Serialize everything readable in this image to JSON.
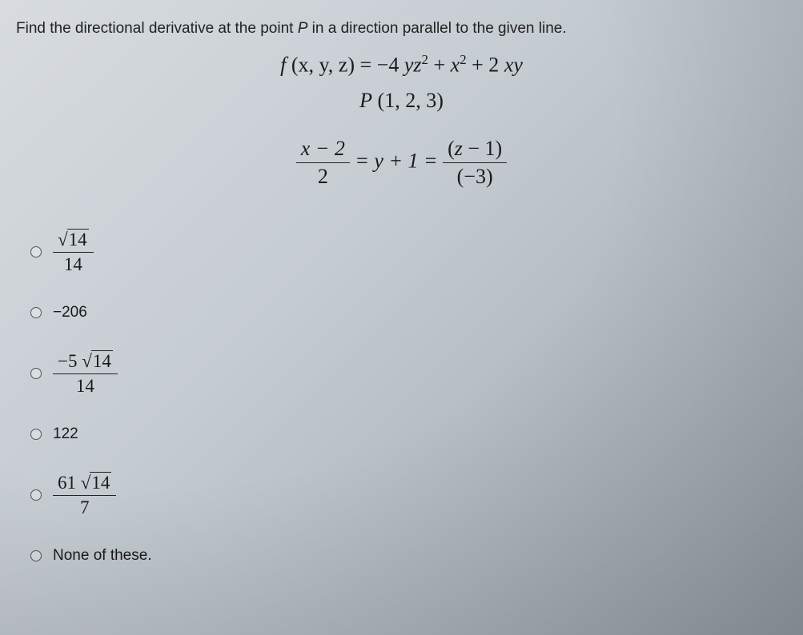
{
  "prompt": {
    "text_pre": "Find the directional derivative at the point ",
    "point_var": "P",
    "text_post": " in a direction parallel to the given line."
  },
  "function_eq": {
    "lhs_f": "f",
    "lhs_args": " (x, y, z) ",
    "eq": "= ",
    "rhs_t1_coef": "−4 ",
    "rhs_t1": "yz",
    "rhs_t1_exp": "2",
    "rhs_plus1": " + ",
    "rhs_t2": "x",
    "rhs_t2_exp": "2",
    "rhs_plus2": " + 2 ",
    "rhs_t3": "xy"
  },
  "point_eq": {
    "P": "P",
    "coords": " (1, 2, 3)"
  },
  "line_eq": {
    "frac1_num": "x − 2",
    "frac1_den": "2",
    "mid": " = y + 1 = ",
    "frac2_num": "(z − 1)",
    "frac2_den": "(−3)"
  },
  "options": {
    "a": {
      "num_radicand": "14",
      "den": "14"
    },
    "b": {
      "text": "−206"
    },
    "c": {
      "coef": "−5 ",
      "radicand": "14",
      "den": "14"
    },
    "d": {
      "text": "122"
    },
    "e": {
      "coef": "61 ",
      "radicand": "14",
      "den": "7"
    },
    "f": {
      "text": "None of these."
    }
  },
  "style": {
    "text_color": "#1a1a1a",
    "bg_gradient_from": "#d8dce0",
    "bg_gradient_to": "#9ba5ae",
    "prompt_fontsize": 19,
    "math_fontsize": 26,
    "option_math_fontsize": 23,
    "option_plain_fontsize": 19
  }
}
